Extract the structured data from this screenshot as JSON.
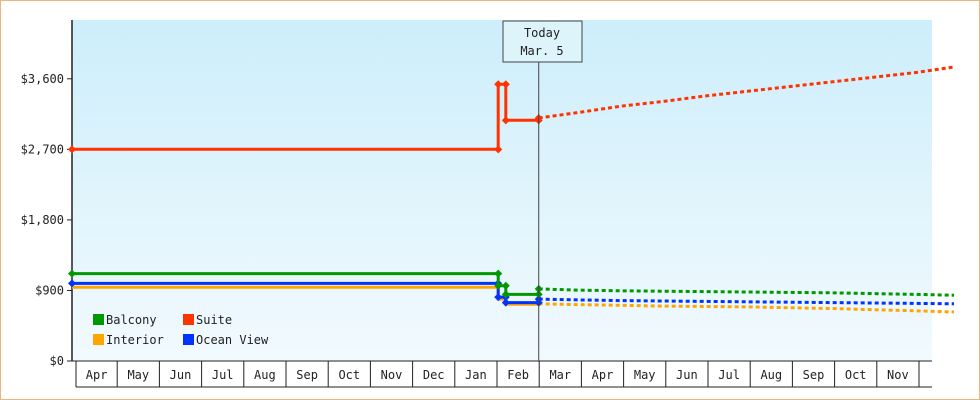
{
  "chart_data": {
    "type": "line",
    "y_axis": {
      "min": 0,
      "max": 4350,
      "ticks": [
        {
          "value": 0,
          "label": "$0"
        },
        {
          "value": 900,
          "label": "$900"
        },
        {
          "value": 1800,
          "label": "$1,800"
        },
        {
          "value": 2700,
          "label": "$2,700"
        },
        {
          "value": 3600,
          "label": "$3,600"
        }
      ]
    },
    "x_axis": {
      "months": [
        "Apr",
        "May",
        "Jun",
        "Jul",
        "Aug",
        "Sep",
        "Oct",
        "Nov",
        "Dec",
        "Jan",
        "Feb",
        "Mar",
        "Apr",
        "May",
        "Jun",
        "Jul",
        "Aug",
        "Sep",
        "Oct",
        "Nov"
      ]
    },
    "today_marker": {
      "line1": "Today",
      "line2": "Mar. 5",
      "position_months": 11.06
    },
    "series": [
      {
        "name": "Suite",
        "color": "#ff3300",
        "historical": [
          [
            0,
            2700
          ],
          [
            10.1,
            2700
          ],
          [
            10.1,
            3530
          ],
          [
            10.28,
            3530
          ],
          [
            10.28,
            3070
          ],
          [
            11.06,
            3070
          ],
          [
            11.06,
            3100
          ]
        ],
        "markers": [
          [
            0,
            2700
          ],
          [
            10.1,
            2700
          ],
          [
            10.1,
            3530
          ],
          [
            10.28,
            3530
          ],
          [
            10.28,
            3070
          ],
          [
            11.06,
            3070
          ],
          [
            11.06,
            3100
          ]
        ],
        "forecast": [
          [
            11.06,
            3100
          ],
          [
            12,
            3170
          ],
          [
            13,
            3250
          ],
          [
            14,
            3310
          ],
          [
            15,
            3380
          ],
          [
            16,
            3440
          ],
          [
            17,
            3500
          ],
          [
            18,
            3560
          ],
          [
            19,
            3620
          ],
          [
            20,
            3680
          ],
          [
            20.9,
            3750
          ]
        ]
      },
      {
        "name": "Balcony",
        "color": "#009900",
        "historical": [
          [
            0,
            1115
          ],
          [
            10.1,
            1115
          ],
          [
            10.1,
            960
          ],
          [
            10.28,
            960
          ],
          [
            10.28,
            850
          ],
          [
            11.06,
            850
          ],
          [
            11.06,
            920
          ]
        ],
        "markers": [
          [
            0,
            1115
          ],
          [
            10.1,
            1115
          ],
          [
            10.1,
            960
          ],
          [
            10.28,
            960
          ],
          [
            10.28,
            850
          ],
          [
            11.06,
            850
          ],
          [
            11.06,
            920
          ]
        ],
        "forecast": [
          [
            11.06,
            920
          ],
          [
            12,
            905
          ],
          [
            13,
            895
          ],
          [
            14,
            890
          ],
          [
            15,
            885
          ],
          [
            16,
            880
          ],
          [
            17,
            875
          ],
          [
            18,
            870
          ],
          [
            19,
            860
          ],
          [
            20,
            850
          ],
          [
            20.9,
            840
          ]
        ]
      },
      {
        "name": "Ocean View",
        "color": "#0033ff",
        "historical": [
          [
            0,
            990
          ],
          [
            10.1,
            990
          ],
          [
            10.1,
            815
          ],
          [
            10.28,
            815
          ],
          [
            10.28,
            745
          ],
          [
            11.06,
            745
          ],
          [
            11.06,
            790
          ]
        ],
        "markers": [
          [
            0,
            990
          ],
          [
            10.1,
            990
          ],
          [
            10.1,
            815
          ],
          [
            10.28,
            815
          ],
          [
            10.28,
            745
          ],
          [
            11.06,
            745
          ],
          [
            11.06,
            790
          ]
        ],
        "forecast": [
          [
            11.06,
            790
          ],
          [
            12,
            780
          ],
          [
            13,
            770
          ],
          [
            14,
            765
          ],
          [
            15,
            760
          ],
          [
            16,
            755
          ],
          [
            17,
            750
          ],
          [
            18,
            745
          ],
          [
            19,
            740
          ],
          [
            20,
            735
          ],
          [
            20.9,
            730
          ]
        ]
      },
      {
        "name": "Interior",
        "color": "#ffa500",
        "historical": [
          [
            0,
            940
          ],
          [
            10.1,
            940
          ],
          [
            10.1,
            790
          ],
          [
            10.28,
            790
          ],
          [
            10.28,
            725
          ],
          [
            11.06,
            725
          ],
          [
            11.06,
            730
          ]
        ],
        "markers": [],
        "forecast": [
          [
            11.06,
            730
          ],
          [
            12,
            720
          ],
          [
            13,
            710
          ],
          [
            14,
            700
          ],
          [
            15,
            695
          ],
          [
            16,
            690
          ],
          [
            17,
            680
          ],
          [
            18,
            670
          ],
          [
            19,
            655
          ],
          [
            20,
            640
          ],
          [
            20.9,
            625
          ]
        ]
      }
    ],
    "legend": {
      "placement": "bottom-left",
      "entries": [
        {
          "name": "Balcony",
          "color": "#009900"
        },
        {
          "name": "Suite",
          "color": "#ff3300"
        },
        {
          "name": "Interior",
          "color": "#ffa500"
        },
        {
          "name": "Ocean View",
          "color": "#0033ff"
        }
      ]
    },
    "grid": {
      "vertical_month_lines": true,
      "horizontal": false
    },
    "colors": {
      "background_top": "#cdeefb",
      "background_bottom": "#f2fafe",
      "axis": "#222222"
    }
  }
}
